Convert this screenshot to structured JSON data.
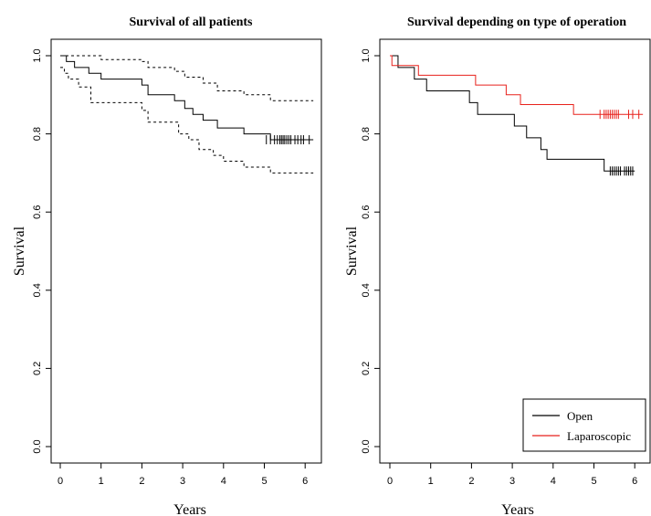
{
  "chart_data": [
    {
      "type": "line",
      "title": "Survival of all patients",
      "xlabel": "Years",
      "ylabel": "Survival",
      "xlim": [
        0,
        6.3
      ],
      "ylim": [
        0,
        1
      ],
      "xticks": [
        "0",
        "1",
        "2",
        "3",
        "4",
        "5",
        "6"
      ],
      "yticks": [
        "0.0",
        "0.2",
        "0.4",
        "0.6",
        "0.8",
        "1.0"
      ],
      "grid": false,
      "series": [
        {
          "role": "estimate",
          "color": "#000000",
          "style": "solid",
          "x": [
            0,
            0.15,
            0.35,
            0.7,
            1.0,
            2.0,
            2.15,
            2.8,
            3.05,
            3.25,
            3.5,
            3.85,
            4.5,
            5.15,
            6.2
          ],
          "y": [
            1.0,
            0.985,
            0.97,
            0.955,
            0.94,
            0.925,
            0.9,
            0.885,
            0.865,
            0.85,
            0.835,
            0.815,
            0.8,
            0.785,
            0.785
          ]
        },
        {
          "role": "upper-ci",
          "color": "#000000",
          "style": "dashed",
          "x": [
            0,
            1.0,
            2.0,
            2.15,
            2.8,
            3.05,
            3.5,
            3.85,
            4.5,
            5.15,
            6.2
          ],
          "y": [
            1.0,
            0.99,
            0.985,
            0.97,
            0.96,
            0.945,
            0.93,
            0.91,
            0.9,
            0.885,
            0.885
          ]
        },
        {
          "role": "lower-ci",
          "color": "#000000",
          "style": "dashed",
          "x": [
            0,
            0.1,
            0.2,
            0.45,
            0.75,
            2.0,
            2.15,
            2.9,
            3.15,
            3.4,
            3.75,
            4.0,
            4.5,
            5.15,
            6.2
          ],
          "y": [
            0.97,
            0.955,
            0.94,
            0.92,
            0.88,
            0.86,
            0.83,
            0.8,
            0.785,
            0.76,
            0.745,
            0.73,
            0.715,
            0.7,
            0.7
          ]
        }
      ],
      "censor_marks": [
        {
          "color": "#000000",
          "y": 0.785,
          "x": [
            5.05,
            5.15,
            5.25,
            5.32,
            5.38,
            5.42,
            5.46,
            5.5,
            5.55,
            5.6,
            5.65,
            5.75,
            5.82,
            5.9,
            5.96,
            6.1
          ]
        }
      ]
    },
    {
      "type": "line",
      "title": "Survival depending on type of operation",
      "xlabel": "Years",
      "ylabel": "Survival",
      "xlim": [
        0,
        6.3
      ],
      "ylim": [
        0,
        1
      ],
      "xticks": [
        "0",
        "1",
        "2",
        "3",
        "4",
        "5",
        "6"
      ],
      "yticks": [
        "0.0",
        "0.2",
        "0.4",
        "0.6",
        "0.8",
        "1.0"
      ],
      "grid": false,
      "legend": {
        "position": "bottom-right",
        "entries": [
          {
            "name": "Open",
            "color": "#000000"
          },
          {
            "name": "Laparoscopic",
            "color": "#e8221c"
          }
        ]
      },
      "series": [
        {
          "name": "Open",
          "color": "#000000",
          "style": "solid",
          "x": [
            0,
            0.2,
            0.6,
            0.9,
            1.95,
            2.15,
            3.05,
            3.35,
            3.7,
            3.85,
            5.25,
            6.0
          ],
          "y": [
            1.0,
            0.97,
            0.94,
            0.91,
            0.88,
            0.85,
            0.82,
            0.79,
            0.76,
            0.735,
            0.705,
            0.705
          ]
        },
        {
          "name": "Laparoscopic",
          "color": "#e8221c",
          "style": "solid",
          "x": [
            0,
            0.05,
            0.7,
            2.1,
            2.85,
            3.2,
            4.5,
            6.2
          ],
          "y": [
            1.0,
            0.975,
            0.95,
            0.925,
            0.9,
            0.875,
            0.85,
            0.85
          ]
        }
      ],
      "censor_marks": [
        {
          "color": "#000000",
          "y": 0.705,
          "x": [
            5.4,
            5.45,
            5.5,
            5.55,
            5.6,
            5.65,
            5.75,
            5.8,
            5.85,
            5.9,
            5.95
          ]
        },
        {
          "color": "#e8221c",
          "y": 0.85,
          "x": [
            5.15,
            5.25,
            5.3,
            5.35,
            5.4,
            5.45,
            5.5,
            5.55,
            5.6,
            5.85,
            5.95,
            6.1
          ]
        }
      ]
    }
  ]
}
